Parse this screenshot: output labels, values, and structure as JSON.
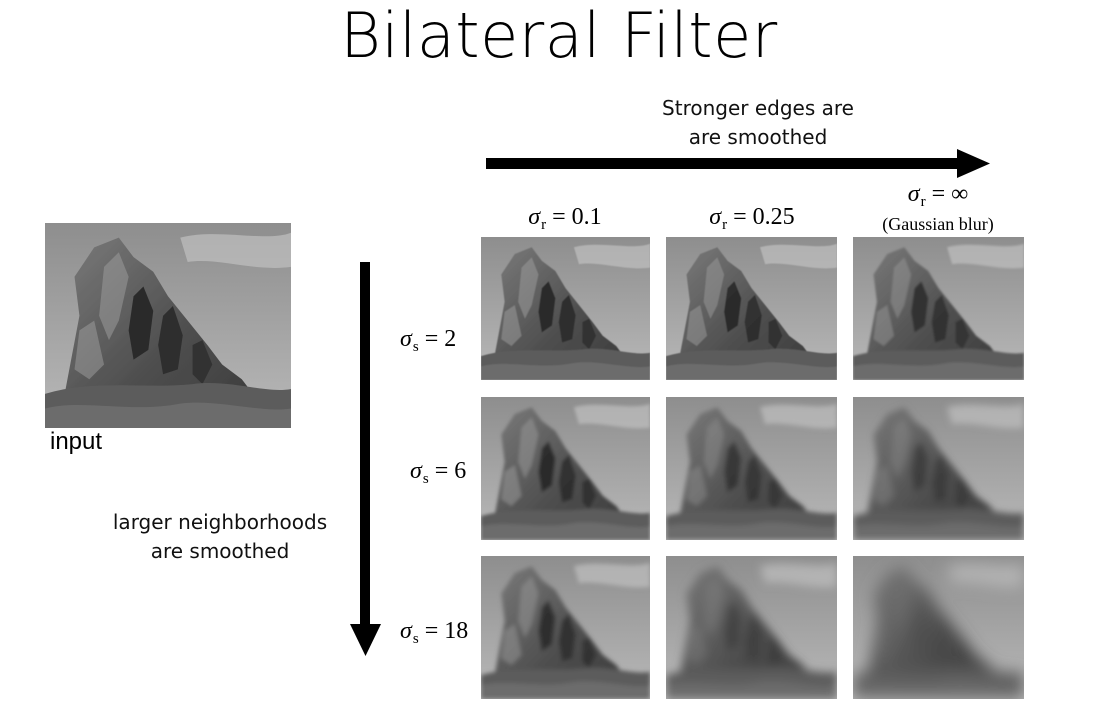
{
  "title": "Bilateral Filter",
  "range_note": [
    "Stronger edges are",
    "are smoothed"
  ],
  "spatial_note": [
    "larger neighborhoods",
    "are smoothed"
  ],
  "input_label": "input",
  "columns": [
    {
      "symbol": "σ",
      "sub": "r",
      "value": "= 0.1",
      "note": ""
    },
    {
      "symbol": "σ",
      "sub": "r",
      "value": "= 0.25",
      "note": ""
    },
    {
      "symbol": "σ",
      "sub": "r",
      "value": "= ∞",
      "note": "(Gaussian blur)"
    }
  ],
  "rows": [
    {
      "symbol": "σ",
      "sub": "s",
      "value": "= 2"
    },
    {
      "symbol": "σ",
      "sub": "s",
      "value": "= 6"
    },
    {
      "symbol": "σ",
      "sub": "s",
      "value": "= 18"
    }
  ],
  "colors": {
    "arrow": "#000000",
    "background": "#ffffff"
  }
}
